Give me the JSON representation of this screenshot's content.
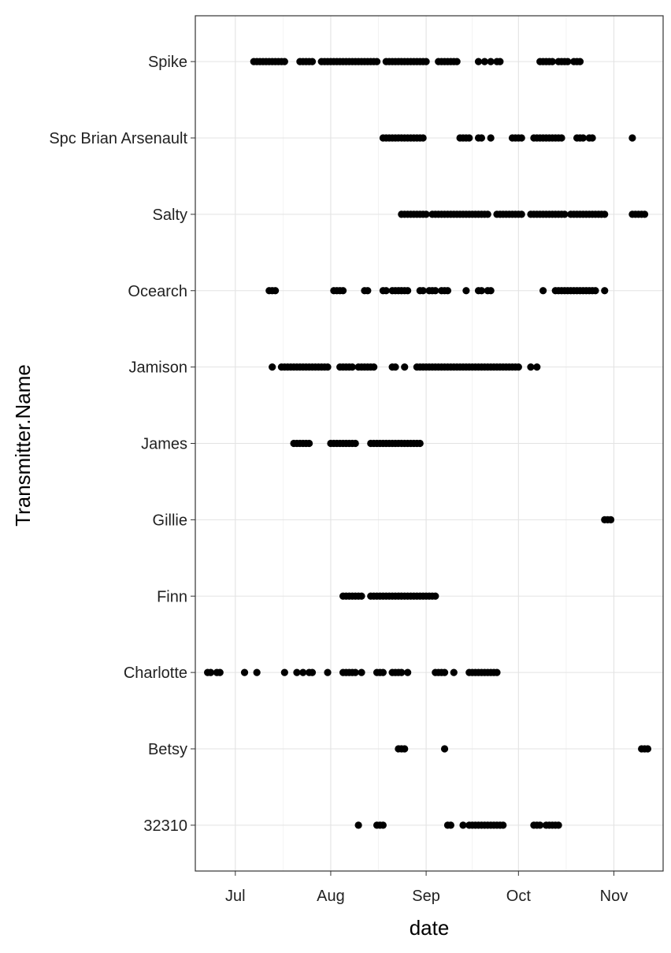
{
  "chart_data": {
    "type": "scatter",
    "title": "",
    "xlabel": "date",
    "ylabel": "Transmitter.Name",
    "x_type": "date",
    "xlim": [
      "2015-06-18",
      "2015-11-17"
    ],
    "x_ticks": [
      {
        "date": "2015-07-01",
        "label": "Jul"
      },
      {
        "date": "2015-08-01",
        "label": "Aug"
      },
      {
        "date": "2015-09-01",
        "label": "Sep"
      },
      {
        "date": "2015-10-01",
        "label": "Oct"
      },
      {
        "date": "2015-11-01",
        "label": "Nov"
      }
    ],
    "categories": [
      "32310",
      "Betsy",
      "Charlotte",
      "Finn",
      "Gillie",
      "James",
      "Jamison",
      "Ocearch",
      "Salty",
      "Spc Brian Arsenault",
      "Spike"
    ],
    "grid": true,
    "legend": "none",
    "point_color": "#000000",
    "series": [
      {
        "category": "Spike",
        "points": [
          "2015-07-07",
          "2015-07-08",
          "2015-07-09",
          "2015-07-10",
          "2015-07-11",
          "2015-07-12",
          "2015-07-13",
          "2015-07-14",
          "2015-07-15",
          "2015-07-16",
          "2015-07-17",
          "2015-07-22",
          "2015-07-23",
          "2015-07-24",
          "2015-07-25",
          "2015-07-26",
          "2015-07-29",
          "2015-07-30",
          "2015-07-31",
          "2015-08-01",
          "2015-08-02",
          "2015-08-03",
          "2015-08-04",
          "2015-08-05",
          "2015-08-06",
          "2015-08-07",
          "2015-08-08",
          "2015-08-09",
          "2015-08-10",
          "2015-08-11",
          "2015-08-12",
          "2015-08-13",
          "2015-08-14",
          "2015-08-15",
          "2015-08-16",
          "2015-08-19",
          "2015-08-20",
          "2015-08-21",
          "2015-08-22",
          "2015-08-23",
          "2015-08-24",
          "2015-08-25",
          "2015-08-26",
          "2015-08-27",
          "2015-08-28",
          "2015-08-29",
          "2015-08-30",
          "2015-08-31",
          "2015-09-01",
          "2015-09-05",
          "2015-09-06",
          "2015-09-07",
          "2015-09-08",
          "2015-09-09",
          "2015-09-10",
          "2015-09-11",
          "2015-09-18",
          "2015-09-20",
          "2015-09-22",
          "2015-09-24",
          "2015-09-25",
          "2015-10-08",
          "2015-10-09",
          "2015-10-10",
          "2015-10-11",
          "2015-10-12",
          "2015-10-14",
          "2015-10-15",
          "2015-10-16",
          "2015-10-17",
          "2015-10-19",
          "2015-10-20",
          "2015-10-21"
        ]
      },
      {
        "category": "Spc Brian Arsenault",
        "points": [
          "2015-08-18",
          "2015-08-19",
          "2015-08-20",
          "2015-08-21",
          "2015-08-22",
          "2015-08-23",
          "2015-08-24",
          "2015-08-25",
          "2015-08-26",
          "2015-08-27",
          "2015-08-28",
          "2015-08-29",
          "2015-08-30",
          "2015-08-31",
          "2015-09-12",
          "2015-09-13",
          "2015-09-14",
          "2015-09-15",
          "2015-09-18",
          "2015-09-19",
          "2015-09-22",
          "2015-09-29",
          "2015-09-30",
          "2015-10-01",
          "2015-10-02",
          "2015-10-06",
          "2015-10-07",
          "2015-10-08",
          "2015-10-09",
          "2015-10-10",
          "2015-10-11",
          "2015-10-12",
          "2015-10-13",
          "2015-10-14",
          "2015-10-15",
          "2015-10-20",
          "2015-10-21",
          "2015-10-22",
          "2015-10-24",
          "2015-10-25",
          "2015-11-07"
        ]
      },
      {
        "category": "Salty",
        "points": [
          "2015-08-24",
          "2015-08-25",
          "2015-08-26",
          "2015-08-27",
          "2015-08-28",
          "2015-08-29",
          "2015-08-30",
          "2015-08-31",
          "2015-09-01",
          "2015-09-03",
          "2015-09-04",
          "2015-09-05",
          "2015-09-06",
          "2015-09-07",
          "2015-09-08",
          "2015-09-09",
          "2015-09-10",
          "2015-09-11",
          "2015-09-12",
          "2015-09-13",
          "2015-09-14",
          "2015-09-15",
          "2015-09-16",
          "2015-09-17",
          "2015-09-18",
          "2015-09-19",
          "2015-09-20",
          "2015-09-21",
          "2015-09-24",
          "2015-09-25",
          "2015-09-26",
          "2015-09-27",
          "2015-09-28",
          "2015-09-29",
          "2015-09-30",
          "2015-10-01",
          "2015-10-02",
          "2015-10-05",
          "2015-10-06",
          "2015-10-07",
          "2015-10-08",
          "2015-10-09",
          "2015-10-10",
          "2015-10-11",
          "2015-10-12",
          "2015-10-13",
          "2015-10-14",
          "2015-10-15",
          "2015-10-16",
          "2015-10-18",
          "2015-10-19",
          "2015-10-20",
          "2015-10-21",
          "2015-10-22",
          "2015-10-23",
          "2015-10-24",
          "2015-10-25",
          "2015-10-26",
          "2015-10-27",
          "2015-10-28",
          "2015-10-29",
          "2015-11-07",
          "2015-11-08",
          "2015-11-09",
          "2015-11-10",
          "2015-11-11"
        ]
      },
      {
        "category": "Ocearch",
        "points": [
          "2015-07-12",
          "2015-07-13",
          "2015-07-14",
          "2015-08-02",
          "2015-08-03",
          "2015-08-04",
          "2015-08-05",
          "2015-08-12",
          "2015-08-13",
          "2015-08-18",
          "2015-08-19",
          "2015-08-21",
          "2015-08-22",
          "2015-08-23",
          "2015-08-24",
          "2015-08-25",
          "2015-08-26",
          "2015-08-30",
          "2015-08-31",
          "2015-09-02",
          "2015-09-03",
          "2015-09-04",
          "2015-09-06",
          "2015-09-07",
          "2015-09-08",
          "2015-09-14",
          "2015-09-18",
          "2015-09-19",
          "2015-09-21",
          "2015-09-22",
          "2015-10-09",
          "2015-10-13",
          "2015-10-14",
          "2015-10-15",
          "2015-10-16",
          "2015-10-17",
          "2015-10-18",
          "2015-10-19",
          "2015-10-20",
          "2015-10-21",
          "2015-10-22",
          "2015-10-23",
          "2015-10-24",
          "2015-10-25",
          "2015-10-26",
          "2015-10-29"
        ]
      },
      {
        "category": "Jamison",
        "points": [
          "2015-07-13",
          "2015-07-16",
          "2015-07-17",
          "2015-07-18",
          "2015-07-19",
          "2015-07-20",
          "2015-07-21",
          "2015-07-22",
          "2015-07-23",
          "2015-07-24",
          "2015-07-25",
          "2015-07-26",
          "2015-07-27",
          "2015-07-28",
          "2015-07-29",
          "2015-07-30",
          "2015-07-31",
          "2015-08-04",
          "2015-08-05",
          "2015-08-06",
          "2015-08-07",
          "2015-08-08",
          "2015-08-10",
          "2015-08-11",
          "2015-08-12",
          "2015-08-13",
          "2015-08-14",
          "2015-08-15",
          "2015-08-21",
          "2015-08-22",
          "2015-08-25",
          "2015-08-29",
          "2015-08-30",
          "2015-08-31",
          "2015-09-01",
          "2015-09-02",
          "2015-09-03",
          "2015-09-04",
          "2015-09-05",
          "2015-09-06",
          "2015-09-07",
          "2015-09-08",
          "2015-09-09",
          "2015-09-10",
          "2015-09-11",
          "2015-09-12",
          "2015-09-13",
          "2015-09-14",
          "2015-09-15",
          "2015-09-16",
          "2015-09-17",
          "2015-09-18",
          "2015-09-19",
          "2015-09-20",
          "2015-09-21",
          "2015-09-22",
          "2015-09-23",
          "2015-09-24",
          "2015-09-25",
          "2015-09-26",
          "2015-09-27",
          "2015-09-28",
          "2015-09-29",
          "2015-09-30",
          "2015-10-01",
          "2015-10-05",
          "2015-10-07"
        ]
      },
      {
        "category": "James",
        "points": [
          "2015-07-20",
          "2015-07-21",
          "2015-07-22",
          "2015-07-23",
          "2015-07-24",
          "2015-07-25",
          "2015-08-01",
          "2015-08-02",
          "2015-08-03",
          "2015-08-04",
          "2015-08-05",
          "2015-08-06",
          "2015-08-07",
          "2015-08-08",
          "2015-08-09",
          "2015-08-14",
          "2015-08-15",
          "2015-08-16",
          "2015-08-17",
          "2015-08-18",
          "2015-08-19",
          "2015-08-20",
          "2015-08-21",
          "2015-08-22",
          "2015-08-23",
          "2015-08-24",
          "2015-08-25",
          "2015-08-26",
          "2015-08-27",
          "2015-08-28",
          "2015-08-29",
          "2015-08-30"
        ]
      },
      {
        "category": "Gillie",
        "points": [
          "2015-10-29",
          "2015-10-30",
          "2015-10-31"
        ]
      },
      {
        "category": "Finn",
        "points": [
          "2015-08-05",
          "2015-08-06",
          "2015-08-07",
          "2015-08-08",
          "2015-08-09",
          "2015-08-10",
          "2015-08-11",
          "2015-08-14",
          "2015-08-15",
          "2015-08-16",
          "2015-08-17",
          "2015-08-18",
          "2015-08-19",
          "2015-08-20",
          "2015-08-21",
          "2015-08-22",
          "2015-08-23",
          "2015-08-24",
          "2015-08-25",
          "2015-08-26",
          "2015-08-27",
          "2015-08-28",
          "2015-08-29",
          "2015-08-30",
          "2015-08-31",
          "2015-09-01",
          "2015-09-02",
          "2015-09-03",
          "2015-09-04"
        ]
      },
      {
        "category": "Charlotte",
        "points": [
          "2015-06-22",
          "2015-06-23",
          "2015-06-25",
          "2015-06-26",
          "2015-07-04",
          "2015-07-08",
          "2015-07-17",
          "2015-07-21",
          "2015-07-23",
          "2015-07-25",
          "2015-07-26",
          "2015-07-31",
          "2015-08-05",
          "2015-08-06",
          "2015-08-07",
          "2015-08-08",
          "2015-08-09",
          "2015-08-11",
          "2015-08-16",
          "2015-08-17",
          "2015-08-18",
          "2015-08-21",
          "2015-08-22",
          "2015-08-23",
          "2015-08-24",
          "2015-08-26",
          "2015-09-04",
          "2015-09-05",
          "2015-09-06",
          "2015-09-07",
          "2015-09-10",
          "2015-09-15",
          "2015-09-16",
          "2015-09-17",
          "2015-09-18",
          "2015-09-19",
          "2015-09-20",
          "2015-09-21",
          "2015-09-22",
          "2015-09-23",
          "2015-09-24"
        ]
      },
      {
        "category": "Betsy",
        "points": [
          "2015-08-23",
          "2015-08-24",
          "2015-08-25",
          "2015-09-07",
          "2015-11-10",
          "2015-11-11",
          "2015-11-12"
        ]
      },
      {
        "category": "32310",
        "points": [
          "2015-08-10",
          "2015-08-16",
          "2015-08-17",
          "2015-08-18",
          "2015-09-08",
          "2015-09-09",
          "2015-09-13",
          "2015-09-15",
          "2015-09-16",
          "2015-09-17",
          "2015-09-18",
          "2015-09-19",
          "2015-09-20",
          "2015-09-21",
          "2015-09-22",
          "2015-09-23",
          "2015-09-24",
          "2015-09-25",
          "2015-09-26",
          "2015-10-06",
          "2015-10-07",
          "2015-10-08",
          "2015-10-10",
          "2015-10-11",
          "2015-10-12",
          "2015-10-13",
          "2015-10-14"
        ]
      }
    ]
  }
}
